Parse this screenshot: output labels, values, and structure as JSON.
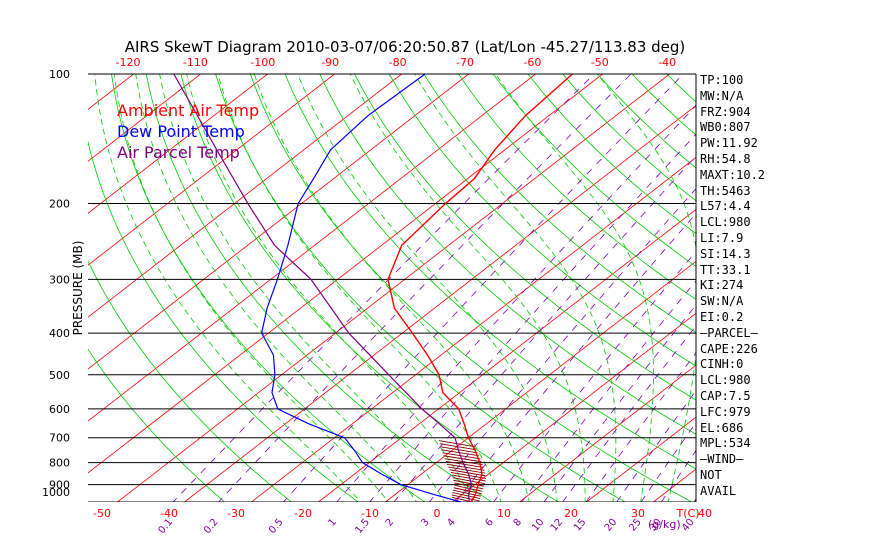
{
  "chart_data": {
    "type": "line",
    "title": "AIRS SkewT Diagram 2010-03-07/06:20:50.87 (Lat/Lon -45.27/113.83 deg)",
    "ylabel": "PRESSURE (MB)",
    "xlabel_bottom_unit": "T(C)",
    "xlabel_mixing_unit": "(g/kg)",
    "pressure_ticks": [
      100,
      200,
      300,
      400,
      500,
      600,
      700,
      800,
      900,
      1000
    ],
    "temp_ticks_bottom": [
      -50,
      -40,
      -30,
      -20,
      -10,
      0,
      10,
      20,
      30,
      40
    ],
    "temp_ticks_top": [
      -120,
      -110,
      -100,
      -90,
      -80,
      -70,
      -60,
      -50,
      -40
    ],
    "mixing_ratio_ticks": [
      "0.1",
      "0.2",
      "0.5",
      "1",
      "1.5",
      "2",
      "3",
      "4",
      "6",
      "8",
      "10",
      "12",
      "15",
      "20",
      "25",
      "30",
      "40"
    ],
    "legend": [
      "Ambient Air Temp",
      "Dew Point Temp",
      "Air Parcel Temp"
    ],
    "colors": {
      "ambient": "#ff0000",
      "dewpoint": "#0000ff",
      "parcel": "#800080",
      "isotherm": "#ff0000",
      "dry_adiabat": "#00cc00",
      "moist_adiabat": "#00cc00",
      "mixing_ratio": "#8000c0",
      "cape_hatch": "#800000",
      "axis_text": "#ff0000",
      "mixing_text": "#8000a0"
    },
    "series": [
      {
        "name": "Ambient Air Temp",
        "points": [
          [
            1000,
            3.0
          ],
          [
            950,
            2.0
          ],
          [
            900,
            0.5
          ],
          [
            850,
            -1.0
          ],
          [
            800,
            -3.5
          ],
          [
            750,
            -6.5
          ],
          [
            700,
            -10.0
          ],
          [
            650,
            -13.3
          ],
          [
            600,
            -17.0
          ],
          [
            550,
            -22.5
          ],
          [
            500,
            -26.5
          ],
          [
            450,
            -32.0
          ],
          [
            400,
            -38.5
          ],
          [
            350,
            -46.0
          ],
          [
            300,
            -52.5
          ],
          [
            250,
            -57.0
          ],
          [
            200,
            -58.5
          ],
          [
            175,
            -59.0
          ],
          [
            150,
            -61.5
          ],
          [
            125,
            -63.5
          ],
          [
            100,
            -64.5
          ]
        ]
      },
      {
        "name": "Dew Point Temp",
        "points": [
          [
            1000,
            3.0
          ],
          [
            950,
            -4.0
          ],
          [
            900,
            -11.0
          ],
          [
            850,
            -16.0
          ],
          [
            800,
            -21.0
          ],
          [
            750,
            -24.5
          ],
          [
            700,
            -28.5
          ],
          [
            650,
            -36.5
          ],
          [
            600,
            -44.0
          ],
          [
            550,
            -48.0
          ],
          [
            500,
            -51.0
          ],
          [
            450,
            -55.0
          ],
          [
            400,
            -61.0
          ],
          [
            350,
            -65.0
          ],
          [
            300,
            -69.0
          ],
          [
            250,
            -74.0
          ],
          [
            200,
            -80.5
          ],
          [
            175,
            -83.0
          ],
          [
            150,
            -86.0
          ],
          [
            125,
            -87.0
          ],
          [
            100,
            -86.5
          ]
        ]
      },
      {
        "name": "Air Parcel Temp",
        "points": [
          [
            1000,
            3.0
          ],
          [
            950,
            1.0
          ],
          [
            900,
            -0.5
          ],
          [
            850,
            -3.0
          ],
          [
            800,
            -6.0
          ],
          [
            750,
            -9.0
          ],
          [
            700,
            -12.0
          ],
          [
            650,
            -17.0
          ],
          [
            600,
            -22.5
          ],
          [
            500,
            -34.0
          ],
          [
            400,
            -48.0
          ],
          [
            300,
            -64.0
          ],
          [
            250,
            -76.0
          ],
          [
            200,
            -88.0
          ],
          [
            150,
            -103.0
          ],
          [
            100,
            -124.0
          ]
        ]
      }
    ],
    "grid": true
  },
  "indices": [
    "TP:100",
    "MW:N/A",
    "FRZ:904",
    "WB0:807",
    "PW:11.92",
    "RH:54.8",
    "MAXT:10.2",
    "TH:5463",
    "L57:4.4",
    "LCL:980",
    "LI:7.9",
    "SI:14.3",
    "TT:33.1",
    "KI:274",
    "SW:N/A",
    "EI:0.2",
    "—PARCEL—",
    "CAPE:226",
    "CINH:0",
    "LCL:980",
    "CAP:7.5",
    "LFC:979",
    "EL:686",
    "MPL:534",
    "—WIND—",
    "NOT",
    "AVAIL"
  ]
}
